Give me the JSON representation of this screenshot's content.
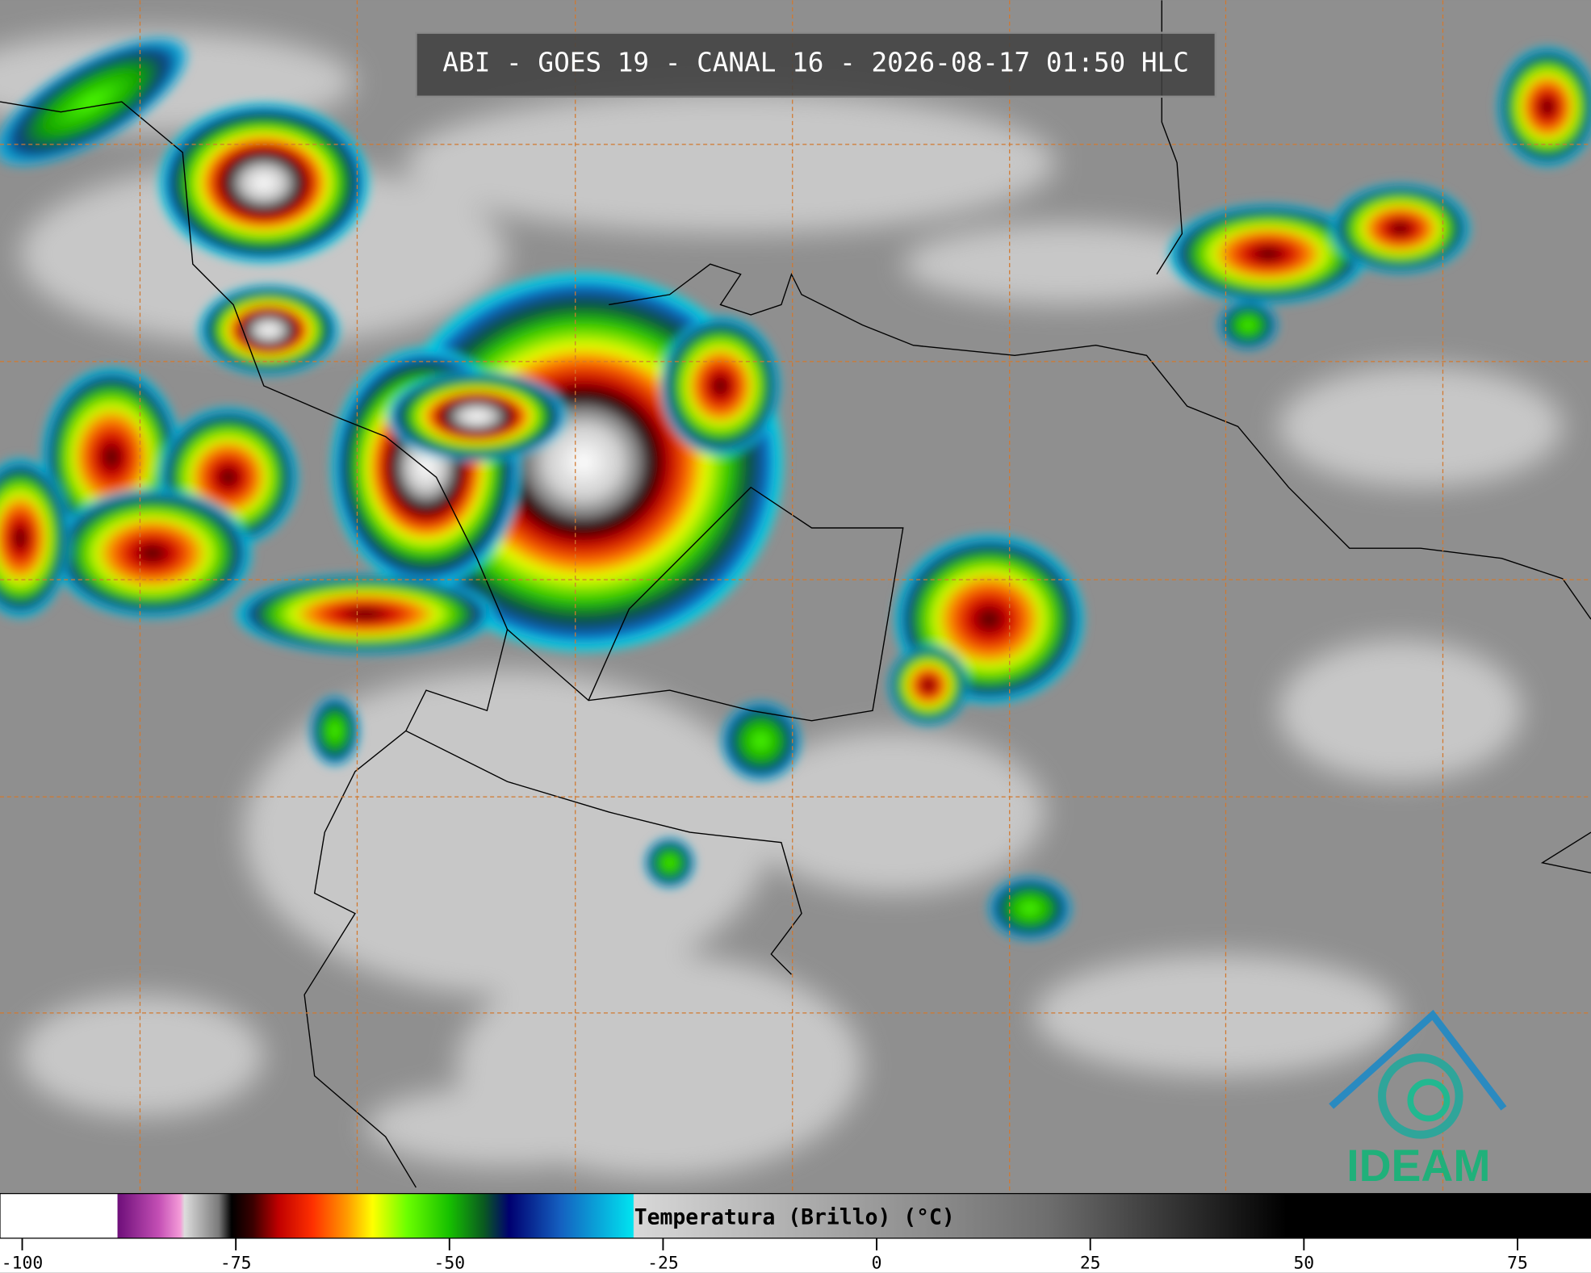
{
  "title": "ABI - GOES 19 - CANAL 16 - 2026-08-17 01:50 HLC",
  "logo": "IDEAM",
  "colorbar": {
    "label": "Temperatura (Brillo) (°C)",
    "lim": [
      -102.6,
      83.6
    ],
    "ticks": [
      -100,
      -75,
      -50,
      -25,
      0,
      25,
      50,
      75
    ],
    "stops": [
      {
        "value": -102.6,
        "color": "#ffffff"
      },
      {
        "value": -88.9,
        "color": "#ffffff"
      },
      {
        "value": -88.8,
        "color": "#6e0f7a"
      },
      {
        "value": -84,
        "color": "#c44fb5"
      },
      {
        "value": -81.5,
        "color": "#f49bd8"
      },
      {
        "value": -81,
        "color": "#dcdcdc"
      },
      {
        "value": -77,
        "color": "#7a7a7a"
      },
      {
        "value": -75.5,
        "color": "#000000"
      },
      {
        "value": -73,
        "color": "#3a0000"
      },
      {
        "value": -70,
        "color": "#c00000"
      },
      {
        "value": -66,
        "color": "#ff3000"
      },
      {
        "value": -62,
        "color": "#ff9a00"
      },
      {
        "value": -59,
        "color": "#ffff00"
      },
      {
        "value": -55,
        "color": "#6cff00"
      },
      {
        "value": -50,
        "color": "#16c000"
      },
      {
        "value": -46,
        "color": "#0a5a20"
      },
      {
        "value": -43,
        "color": "#000070"
      },
      {
        "value": -37,
        "color": "#1460c0"
      },
      {
        "value": -28.5,
        "color": "#00e4f0"
      },
      {
        "value": -28.4,
        "color": "#d8d8d8"
      },
      {
        "value": 20,
        "color": "#6e6e6e"
      },
      {
        "value": 48,
        "color": "#000000"
      },
      {
        "value": 83.6,
        "color": "#000000"
      }
    ]
  }
}
